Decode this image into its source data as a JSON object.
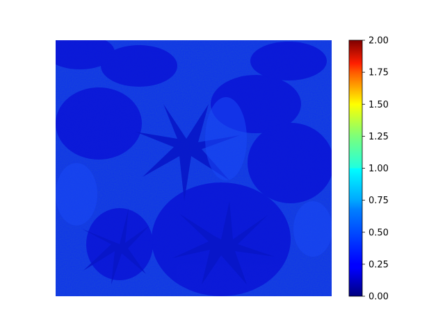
{
  "chart_data": {
    "type": "heatmap",
    "title": "",
    "xlabel": "",
    "ylabel": "",
    "colormap": "jet",
    "axes_visible": false,
    "grid": false,
    "colorbar": {
      "placement": "right",
      "vmin": 0.0,
      "vmax": 2.0,
      "ticks": [
        0.0,
        0.25,
        0.5,
        0.75,
        1.0,
        1.25,
        1.5,
        1.75,
        2.0
      ],
      "tick_labels": [
        "0.00",
        "0.25",
        "0.50",
        "0.75",
        "1.00",
        "1.25",
        "1.50",
        "1.75",
        "2.00"
      ]
    },
    "image_description_values": {
      "background_value": 0.22,
      "dark_pattern_value": 0.12
    }
  }
}
